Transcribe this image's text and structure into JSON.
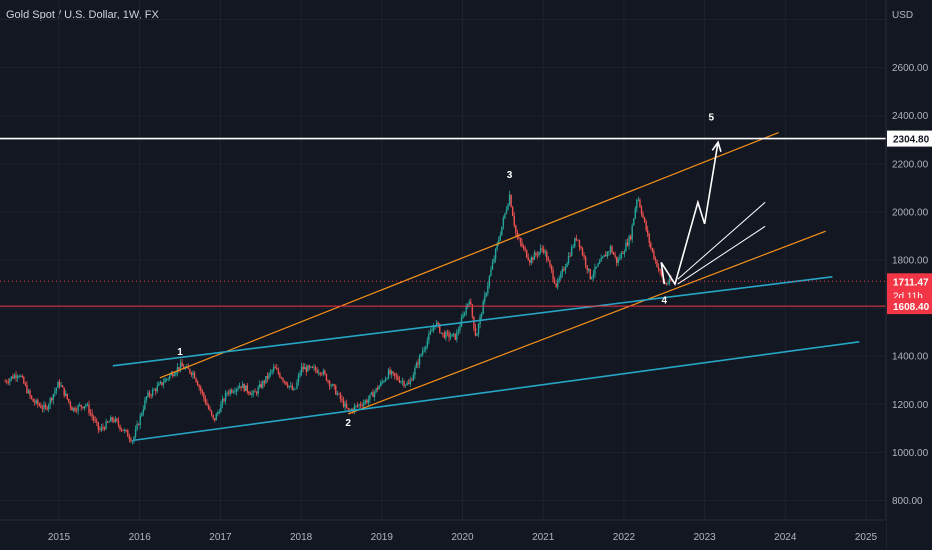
{
  "header": {
    "symbol_title": "Gold Spot / U.S. Dollar, 1W, FX"
  },
  "price_axis": {
    "unit_label": "USD",
    "ticks": [
      "2600.00",
      "2400.00",
      "2200.00",
      "2000.00",
      "1800.00",
      "1400.00",
      "1200.00",
      "1000.00",
      "800.00"
    ]
  },
  "time_axis": {
    "ticks": [
      "2015",
      "2016",
      "2017",
      "2018",
      "2019",
      "2020",
      "2021",
      "2022",
      "2023",
      "2024",
      "2025"
    ]
  },
  "price_labels": {
    "target": {
      "text": "2304.80",
      "color": "#ffffff"
    },
    "current": {
      "text": "1711.47",
      "countdown": "2d 11h",
      "color": "#f23645"
    },
    "support": {
      "text": "1608.40",
      "color": "#f23645"
    }
  },
  "wave_labels": [
    "1",
    "2",
    "3",
    "4",
    "5"
  ],
  "colors": {
    "background": "#131722",
    "up_candle": "#26a69a",
    "down_candle": "#ef5350",
    "orange_channel": "#f7931a",
    "teal_channel": "#26a6c4",
    "projection": "#ffffff",
    "support_line": "#f23645"
  },
  "chart_data": {
    "type": "candlestick",
    "title": "Gold Spot / U.S. Dollar, 1W, FX",
    "y_unit": "USD",
    "ylim": [
      700,
      2850
    ],
    "xlim": [
      "2014-05",
      "2025-05"
    ],
    "price_path": [
      {
        "date": "2014-05",
        "price": 1295
      },
      {
        "date": "2014-07",
        "price": 1330
      },
      {
        "date": "2014-09",
        "price": 1215
      },
      {
        "date": "2014-11",
        "price": 1180
      },
      {
        "date": "2015-01",
        "price": 1290
      },
      {
        "date": "2015-03",
        "price": 1180
      },
      {
        "date": "2015-05",
        "price": 1200
      },
      {
        "date": "2015-07",
        "price": 1090
      },
      {
        "date": "2015-09",
        "price": 1140
      },
      {
        "date": "2015-12",
        "price": 1050
      },
      {
        "date": "2016-02",
        "price": 1230
      },
      {
        "date": "2016-04",
        "price": 1280
      },
      {
        "date": "2016-07",
        "price": 1360
      },
      {
        "date": "2016-09",
        "price": 1330
      },
      {
        "date": "2016-12",
        "price": 1130
      },
      {
        "date": "2017-02",
        "price": 1250
      },
      {
        "date": "2017-04",
        "price": 1280
      },
      {
        "date": "2017-06",
        "price": 1240
      },
      {
        "date": "2017-09",
        "price": 1350
      },
      {
        "date": "2017-12",
        "price": 1250
      },
      {
        "date": "2018-01",
        "price": 1350
      },
      {
        "date": "2018-04",
        "price": 1340
      },
      {
        "date": "2018-06",
        "price": 1260
      },
      {
        "date": "2018-08",
        "price": 1170
      },
      {
        "date": "2018-11",
        "price": 1220
      },
      {
        "date": "2019-01",
        "price": 1290
      },
      {
        "date": "2019-02",
        "price": 1330
      },
      {
        "date": "2019-05",
        "price": 1280
      },
      {
        "date": "2019-07",
        "price": 1420
      },
      {
        "date": "2019-09",
        "price": 1540
      },
      {
        "date": "2019-10",
        "price": 1490
      },
      {
        "date": "2019-12",
        "price": 1480
      },
      {
        "date": "2020-02",
        "price": 1640
      },
      {
        "date": "2020-03",
        "price": 1480
      },
      {
        "date": "2020-05",
        "price": 1730
      },
      {
        "date": "2020-08",
        "price": 2070
      },
      {
        "date": "2020-09",
        "price": 1900
      },
      {
        "date": "2020-11",
        "price": 1800
      },
      {
        "date": "2021-01",
        "price": 1850
      },
      {
        "date": "2021-03",
        "price": 1690
      },
      {
        "date": "2021-06",
        "price": 1900
      },
      {
        "date": "2021-08",
        "price": 1730
      },
      {
        "date": "2021-11",
        "price": 1850
      },
      {
        "date": "2021-12",
        "price": 1790
      },
      {
        "date": "2022-02",
        "price": 1900
      },
      {
        "date": "2022-03",
        "price": 2070
      },
      {
        "date": "2022-05",
        "price": 1850
      },
      {
        "date": "2022-07",
        "price": 1700
      },
      {
        "date": "2022-08",
        "price": 1711.47
      }
    ],
    "horizontal_levels": [
      {
        "price": 2304.8,
        "label": "2304.80"
      },
      {
        "price": 1711.47,
        "label": "1711.47",
        "style": "dotted"
      },
      {
        "price": 1608.4,
        "label": "1608.40"
      }
    ],
    "trend_lines": {
      "orange_upper": [
        {
          "date": "2016-04",
          "price": 1310
        },
        {
          "date": "2023-12",
          "price": 2330
        }
      ],
      "orange_lower": [
        {
          "date": "2018-08",
          "price": 1160
        },
        {
          "date": "2024-07",
          "price": 1920
        }
      ],
      "teal_upper": [
        {
          "date": "2015-09",
          "price": 1360
        },
        {
          "date": "2024-08",
          "price": 1730
        }
      ],
      "teal_lower": [
        {
          "date": "2015-12",
          "price": 1050
        },
        {
          "date": "2024-12",
          "price": 1460
        }
      ],
      "projection_channel_upper": [
        {
          "date": "2022-09",
          "price": 1720
        },
        {
          "date": "2023-10",
          "price": 2040
        }
      ],
      "projection_channel_lower": [
        {
          "date": "2022-09",
          "price": 1700
        },
        {
          "date": "2023-10",
          "price": 1940
        }
      ]
    },
    "projection_path": [
      {
        "date": "2022-07",
        "price": 1700
      },
      {
        "date": "2022-07",
        "price": 1790
      },
      {
        "date": "2022-08",
        "price": 1700
      },
      {
        "date": "2022-12",
        "price": 2040
      },
      {
        "date": "2023-01",
        "price": 1950
      },
      {
        "date": "2023-03",
        "price": 2290
      }
    ],
    "wave_points": [
      {
        "label": "1",
        "date": "2016-07",
        "price": 1405
      },
      {
        "label": "2",
        "date": "2018-08",
        "price": 1110
      },
      {
        "label": "3",
        "date": "2020-08",
        "price": 2140
      },
      {
        "label": "4",
        "date": "2022-07",
        "price": 1620
      },
      {
        "label": "5",
        "date": "2023-02",
        "price": 2380
      }
    ]
  }
}
